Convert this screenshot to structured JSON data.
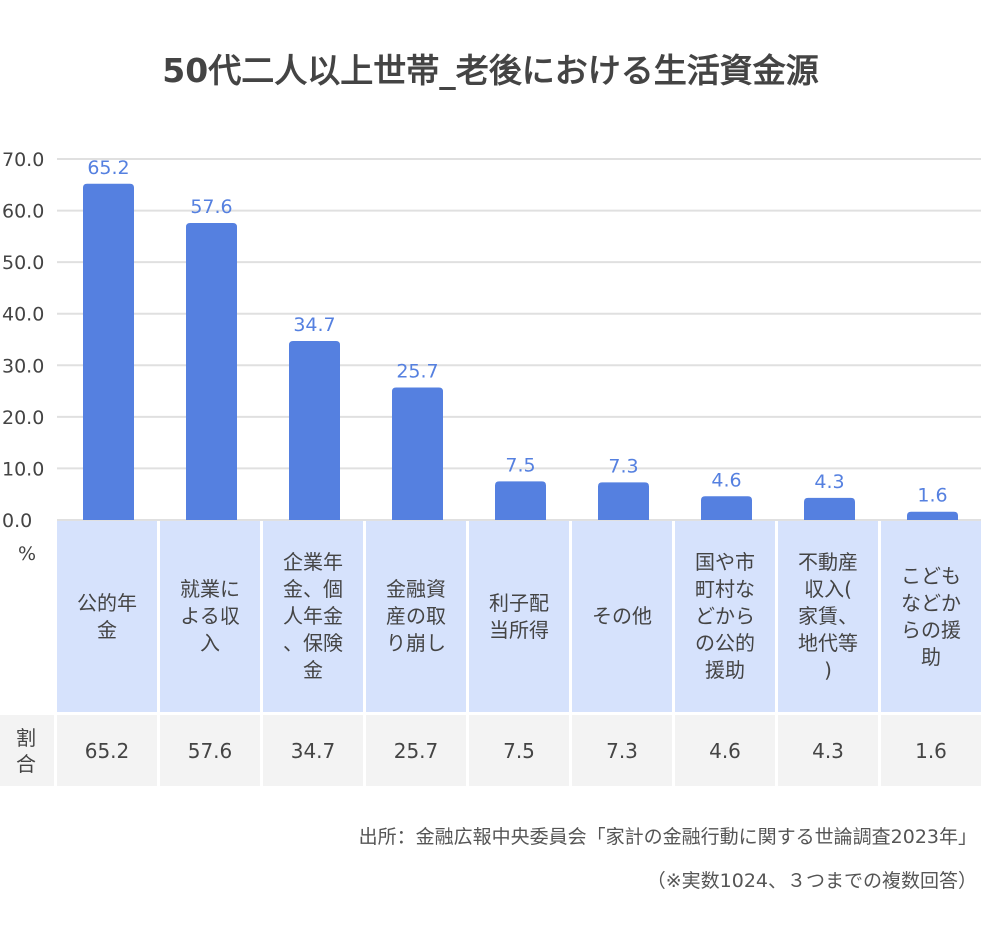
{
  "chart_data": {
    "type": "bar",
    "title": "50代二人以上世帯_老後における生活資金源",
    "categories": [
      "公的年金",
      "就業による収入",
      "企業年金、個人年金、保険金",
      "金融資産の取り崩し",
      "利子配当所得",
      "その他",
      "国や市町村などからの公的援助",
      "不動産収入(家賃、地代等)",
      "こどもなどからの援助"
    ],
    "values": [
      65.2,
      57.6,
      34.7,
      25.7,
      7.5,
      7.3,
      4.6,
      4.3,
      1.6
    ],
    "value_labels": [
      "65.2",
      "57.6",
      "34.7",
      "25.7",
      "7.5",
      "7.3",
      "4.6",
      "4.3",
      "1.6"
    ],
    "ylim": [
      0,
      70
    ],
    "yticks": [
      "0.0",
      "10.0",
      "20.0",
      "30.0",
      "40.0",
      "50.0",
      "60.0",
      "70.0"
    ],
    "ylabel": "%",
    "grid": true,
    "table_row_label": "割合",
    "bar_color": "#5580e0",
    "header_color": "#d6e2fc"
  },
  "source": {
    "line1": "出所：金融広報中央委員会「家計の金融行動に関する世論調査2023年」",
    "line2": "（※実数1024、３つまでの複数回答）"
  }
}
